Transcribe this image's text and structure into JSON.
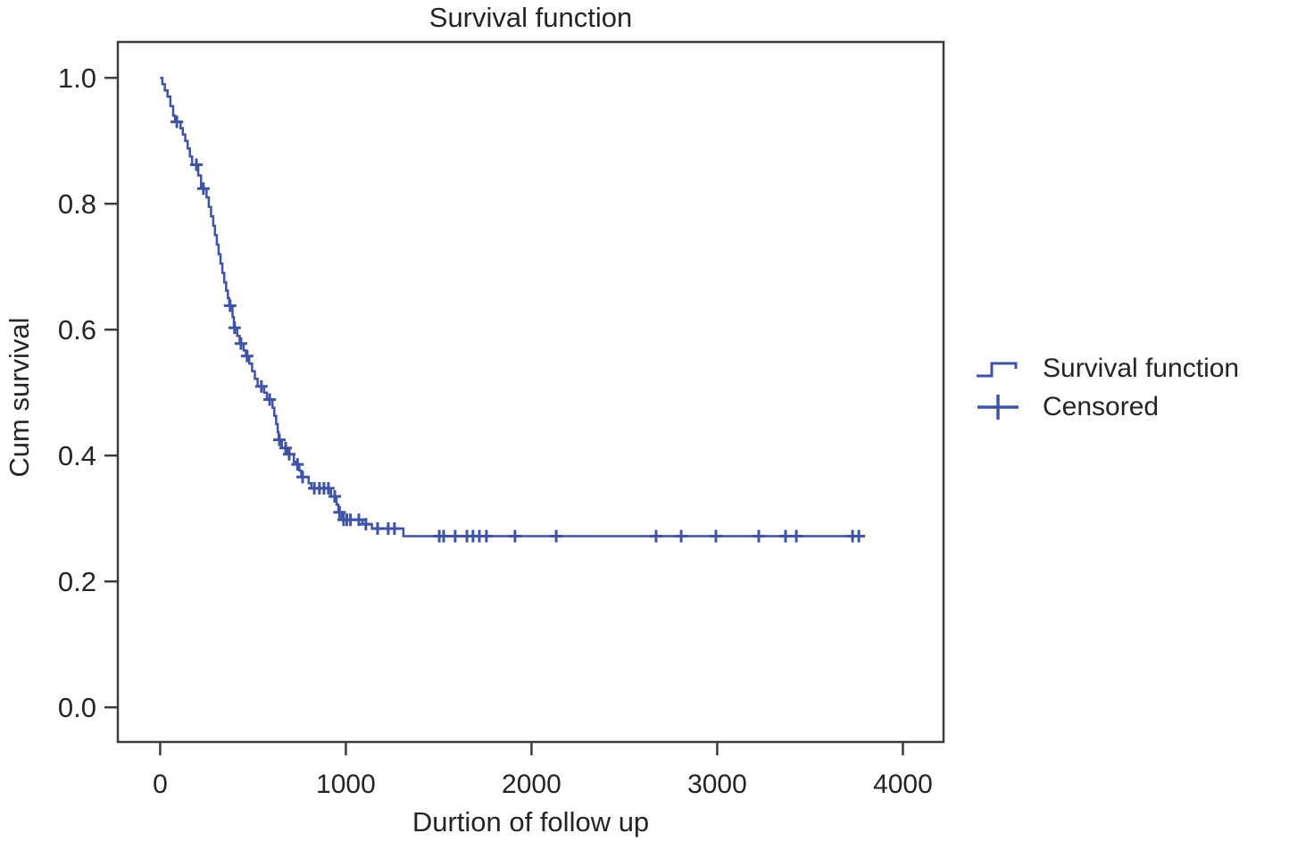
{
  "figure": {
    "title": "Survival function",
    "x_axis": {
      "label": "Durtion of follow up"
    },
    "y_axis": {
      "label": "Cum survival"
    },
    "legend": [
      {
        "label": "Survival function",
        "symbol": "step-line"
      },
      {
        "label": "Censored",
        "symbol": "plus"
      }
    ],
    "colors": {
      "series_blue": "#3e53a5",
      "axis_stroke": "#3c3c3e",
      "text": "#272325"
    }
  },
  "chart_data": {
    "type": "line",
    "subtype": "kaplan-meier-step",
    "title": "Survival function",
    "xlabel": "Durtion of follow up",
    "ylabel": "Cum survival",
    "xlim": [
      -228,
      4219
    ],
    "ylim": [
      -0.055,
      1.057
    ],
    "x_ticks": [
      0,
      1000,
      2000,
      3000,
      4000
    ],
    "y_ticks": [
      0.0,
      0.2,
      0.4,
      0.6,
      0.8,
      1.0
    ],
    "y_tick_labels": [
      "0.0",
      "0.2",
      "0.4",
      "0.6",
      "0.8",
      "1.0"
    ],
    "grid": false,
    "legend_position": "right-outside",
    "series": [
      {
        "name": "Survival function",
        "step": true,
        "points": [
          [
            0,
            1.0
          ],
          [
            12,
            0.99
          ],
          [
            25,
            0.98
          ],
          [
            40,
            0.97
          ],
          [
            55,
            0.955
          ],
          [
            70,
            0.94
          ],
          [
            80,
            0.93
          ],
          [
            110,
            0.92
          ],
          [
            122,
            0.91
          ],
          [
            135,
            0.9
          ],
          [
            148,
            0.888
          ],
          [
            160,
            0.875
          ],
          [
            172,
            0.862
          ],
          [
            205,
            0.845
          ],
          [
            220,
            0.824
          ],
          [
            250,
            0.81
          ],
          [
            262,
            0.795
          ],
          [
            274,
            0.78
          ],
          [
            286,
            0.765
          ],
          [
            295,
            0.75
          ],
          [
            305,
            0.735
          ],
          [
            315,
            0.72
          ],
          [
            325,
            0.705
          ],
          [
            335,
            0.69
          ],
          [
            345,
            0.675
          ],
          [
            355,
            0.662
          ],
          [
            365,
            0.65
          ],
          [
            372,
            0.638
          ],
          [
            390,
            0.62
          ],
          [
            397,
            0.603
          ],
          [
            415,
            0.59
          ],
          [
            428,
            0.578
          ],
          [
            450,
            0.567
          ],
          [
            462,
            0.558
          ],
          [
            480,
            0.546
          ],
          [
            495,
            0.534
          ],
          [
            510,
            0.522
          ],
          [
            525,
            0.51
          ],
          [
            560,
            0.5
          ],
          [
            575,
            0.489
          ],
          [
            605,
            0.476
          ],
          [
            615,
            0.463
          ],
          [
            625,
            0.45
          ],
          [
            633,
            0.437
          ],
          [
            638,
            0.425
          ],
          [
            655,
            0.412
          ],
          [
            685,
            0.402
          ],
          [
            720,
            0.39
          ],
          [
            733,
            0.386
          ],
          [
            750,
            0.376
          ],
          [
            760,
            0.366
          ],
          [
            800,
            0.356
          ],
          [
            815,
            0.348
          ],
          [
            920,
            0.335
          ],
          [
            950,
            0.322
          ],
          [
            960,
            0.31
          ],
          [
            980,
            0.298
          ],
          [
            1090,
            0.291
          ],
          [
            1140,
            0.284
          ],
          [
            1310,
            0.272
          ],
          [
            3791,
            0.272
          ]
        ]
      }
    ],
    "censored": {
      "name": "Censored",
      "points": [
        [
          90,
          0.93
        ],
        [
          195,
          0.862
        ],
        [
          233,
          0.824
        ],
        [
          377,
          0.638
        ],
        [
          401,
          0.603
        ],
        [
          435,
          0.578
        ],
        [
          468,
          0.558
        ],
        [
          545,
          0.51
        ],
        [
          590,
          0.489
        ],
        [
          642,
          0.425
        ],
        [
          676,
          0.412
        ],
        [
          695,
          0.402
        ],
        [
          740,
          0.386
        ],
        [
          767,
          0.366
        ],
        [
          830,
          0.348
        ],
        [
          858,
          0.348
        ],
        [
          882,
          0.348
        ],
        [
          906,
          0.348
        ],
        [
          940,
          0.335
        ],
        [
          966,
          0.31
        ],
        [
          988,
          0.298
        ],
        [
          1005,
          0.298
        ],
        [
          1025,
          0.298
        ],
        [
          1070,
          0.298
        ],
        [
          1108,
          0.291
        ],
        [
          1171,
          0.284
        ],
        [
          1228,
          0.284
        ],
        [
          1262,
          0.284
        ],
        [
          1503,
          0.272
        ],
        [
          1527,
          0.272
        ],
        [
          1589,
          0.272
        ],
        [
          1652,
          0.272
        ],
        [
          1685,
          0.272
        ],
        [
          1719,
          0.272
        ],
        [
          1757,
          0.272
        ],
        [
          1911,
          0.272
        ],
        [
          2133,
          0.272
        ],
        [
          2671,
          0.272
        ],
        [
          2806,
          0.272
        ],
        [
          2993,
          0.272
        ],
        [
          3224,
          0.272
        ],
        [
          3368,
          0.272
        ],
        [
          3426,
          0.272
        ],
        [
          3729,
          0.272
        ],
        [
          3763,
          0.272
        ]
      ]
    }
  }
}
